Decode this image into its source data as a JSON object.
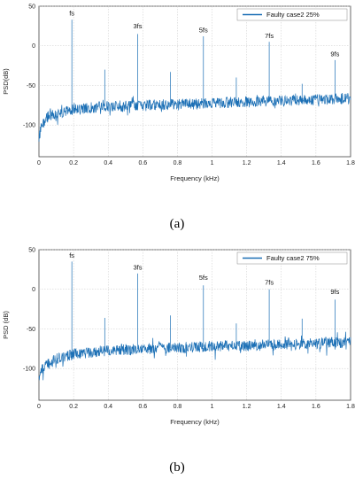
{
  "colors": {
    "series": "#1b6fb5",
    "grid": "#c8c8c8",
    "axis": "#444444"
  },
  "chart_data": [
    {
      "panel": "a",
      "caption": "(a)",
      "type": "line",
      "xlabel": "Frequency (kHz)",
      "ylabel": "PSD(dB)",
      "xlim": [
        0,
        1.8
      ],
      "ylim": [
        -140,
        50
      ],
      "xticks": [
        "0",
        "0.2",
        "0.4",
        "0.6",
        "0.8",
        "1",
        "1.2",
        "1.4",
        "1.6",
        "1.8"
      ],
      "yticks": [
        "50",
        "0",
        "-50",
        "-100"
      ],
      "grid": true,
      "legend": "top-right",
      "series": [
        {
          "name": "Faulty case2 25%",
          "noise_floor": [
            [
              0,
              -115
            ],
            [
              0.02,
              -100
            ],
            [
              0.05,
              -90
            ],
            [
              0.1,
              -85
            ],
            [
              0.2,
              -80
            ],
            [
              0.4,
              -76
            ],
            [
              0.6,
              -75
            ],
            [
              0.8,
              -74
            ],
            [
              1.0,
              -72
            ],
            [
              1.2,
              -71
            ],
            [
              1.4,
              -70
            ],
            [
              1.6,
              -68
            ],
            [
              1.8,
              -66
            ]
          ],
          "peaks": [
            {
              "x": 0.19,
              "y": 33
            },
            {
              "x": 0.38,
              "y": -30
            },
            {
              "x": 0.57,
              "y": 15
            },
            {
              "x": 0.76,
              "y": -33
            },
            {
              "x": 0.95,
              "y": 12
            },
            {
              "x": 1.14,
              "y": -40
            },
            {
              "x": 1.33,
              "y": 5
            },
            {
              "x": 1.52,
              "y": -48
            },
            {
              "x": 1.71,
              "y": -18
            }
          ]
        }
      ],
      "annotations": [
        {
          "text": "fs",
          "x": 0.19,
          "y": 38
        },
        {
          "text": "3fs",
          "x": 0.57,
          "y": 22
        },
        {
          "text": "5fs",
          "x": 0.95,
          "y": 17
        },
        {
          "text": "7fs",
          "x": 1.33,
          "y": 10
        },
        {
          "text": "9fs",
          "x": 1.71,
          "y": -13
        }
      ]
    },
    {
      "panel": "b",
      "caption": "(b)",
      "type": "line",
      "xlabel": "Frequency (kHz)",
      "ylabel": "PSD (dB)",
      "xlim": [
        0,
        1.8
      ],
      "ylim": [
        -140,
        50
      ],
      "xticks": [
        "0",
        "0.2",
        "0.4",
        "0.6",
        "0.8",
        "1",
        "1.2",
        "1.4",
        "1.6",
        "1.8"
      ],
      "yticks": [
        "50",
        "0",
        "-50",
        "-100"
      ],
      "grid": true,
      "legend": "top-right",
      "series": [
        {
          "name": "Faulty case2 75%",
          "noise_floor": [
            [
              0,
              -110
            ],
            [
              0.02,
              -100
            ],
            [
              0.05,
              -95
            ],
            [
              0.1,
              -88
            ],
            [
              0.2,
              -82
            ],
            [
              0.4,
              -77
            ],
            [
              0.6,
              -75
            ],
            [
              0.8,
              -74
            ],
            [
              1.0,
              -72
            ],
            [
              1.2,
              -71
            ],
            [
              1.4,
              -70
            ],
            [
              1.6,
              -68
            ],
            [
              1.8,
              -66
            ]
          ],
          "peaks": [
            {
              "x": 0.19,
              "y": 35
            },
            {
              "x": 0.38,
              "y": -36
            },
            {
              "x": 0.57,
              "y": 20
            },
            {
              "x": 0.76,
              "y": -33
            },
            {
              "x": 0.95,
              "y": 5
            },
            {
              "x": 1.14,
              "y": -43
            },
            {
              "x": 1.33,
              "y": 0
            },
            {
              "x": 1.52,
              "y": -37
            },
            {
              "x": 1.71,
              "y": -13
            }
          ]
        }
      ],
      "annotations": [
        {
          "text": "fs",
          "x": 0.19,
          "y": 40
        },
        {
          "text": "3fs",
          "x": 0.57,
          "y": 25
        },
        {
          "text": "5fs",
          "x": 0.95,
          "y": 12
        },
        {
          "text": "7fs",
          "x": 1.33,
          "y": 6
        },
        {
          "text": "9fs",
          "x": 1.71,
          "y": -6
        }
      ]
    }
  ]
}
